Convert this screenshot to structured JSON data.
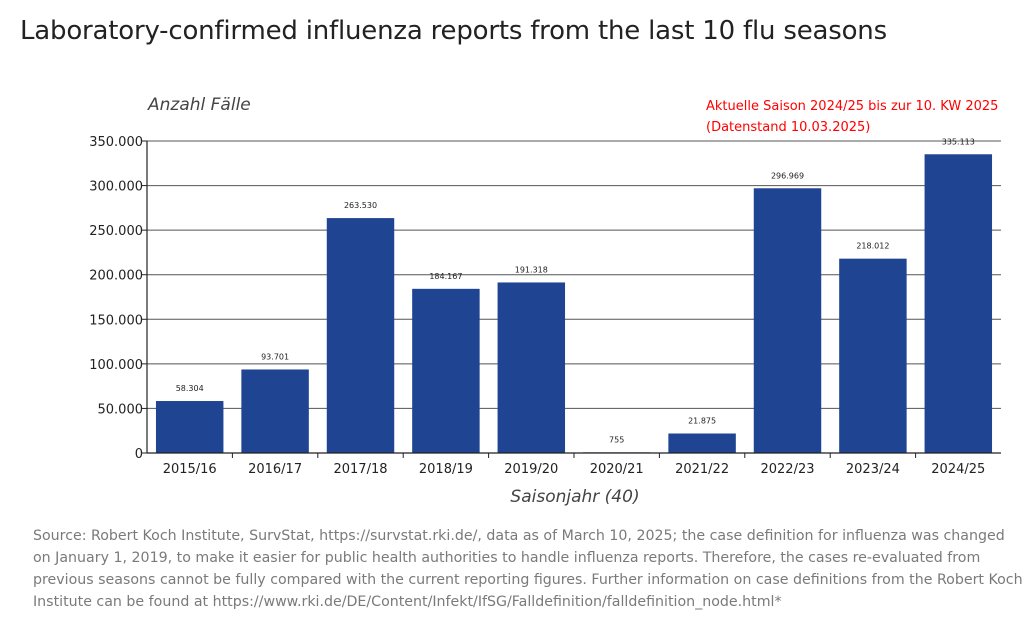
{
  "page": {
    "title": "Laboratory-confirmed influenza reports from the last 10 flu seasons",
    "source": "Source: Robert Koch Institute, SurvStat, https://survstat.rki.de/, data as of March 10, 2025; the case definition for influenza was changed on January 1, 2019, to make it easier for public health authorities to handle influenza reports. Therefore, the cases re-evaluated from previous seasons cannot be fully compared with the current reporting figures. Further information on case definitions from the Robert Koch Institute can be found at https://www.rki.de/DE/Content/Infekt/IfSG/Falldefinition/falldefinition_node.html*"
  },
  "chart_data": {
    "type": "bar",
    "categories": [
      "2015/16",
      "2016/17",
      "2017/18",
      "2018/19",
      "2019/20",
      "2020/21",
      "2021/22",
      "2022/23",
      "2023/24",
      "2024/25"
    ],
    "values": [
      58304,
      93701,
      263530,
      184167,
      191318,
      755,
      21875,
      296969,
      218012,
      335113
    ],
    "data_labels": [
      "58.304",
      "93.701",
      "263.530",
      "184.167",
      "191.318",
      "755",
      "21.875",
      "296.969",
      "218.012",
      "335.113"
    ],
    "ylabel": "Anzahl Fälle",
    "xlabel": "Saisonjahr (40)",
    "ylim": [
      0,
      350000
    ],
    "yticks": [
      0,
      50000,
      100000,
      150000,
      200000,
      250000,
      300000,
      350000
    ],
    "ytick_labels": [
      "0",
      "50.000",
      "100.000",
      "150.000",
      "200.000",
      "250.000",
      "300.000",
      "350.000"
    ],
    "annotation_line1": "Aktuelle Saison 2024/25 bis zur 10. KW 2025",
    "annotation_line2": "(Datenstand 10.03.2025)",
    "grid": true,
    "bar_color": "#1f4592",
    "annotation_color": "#ff0000"
  }
}
